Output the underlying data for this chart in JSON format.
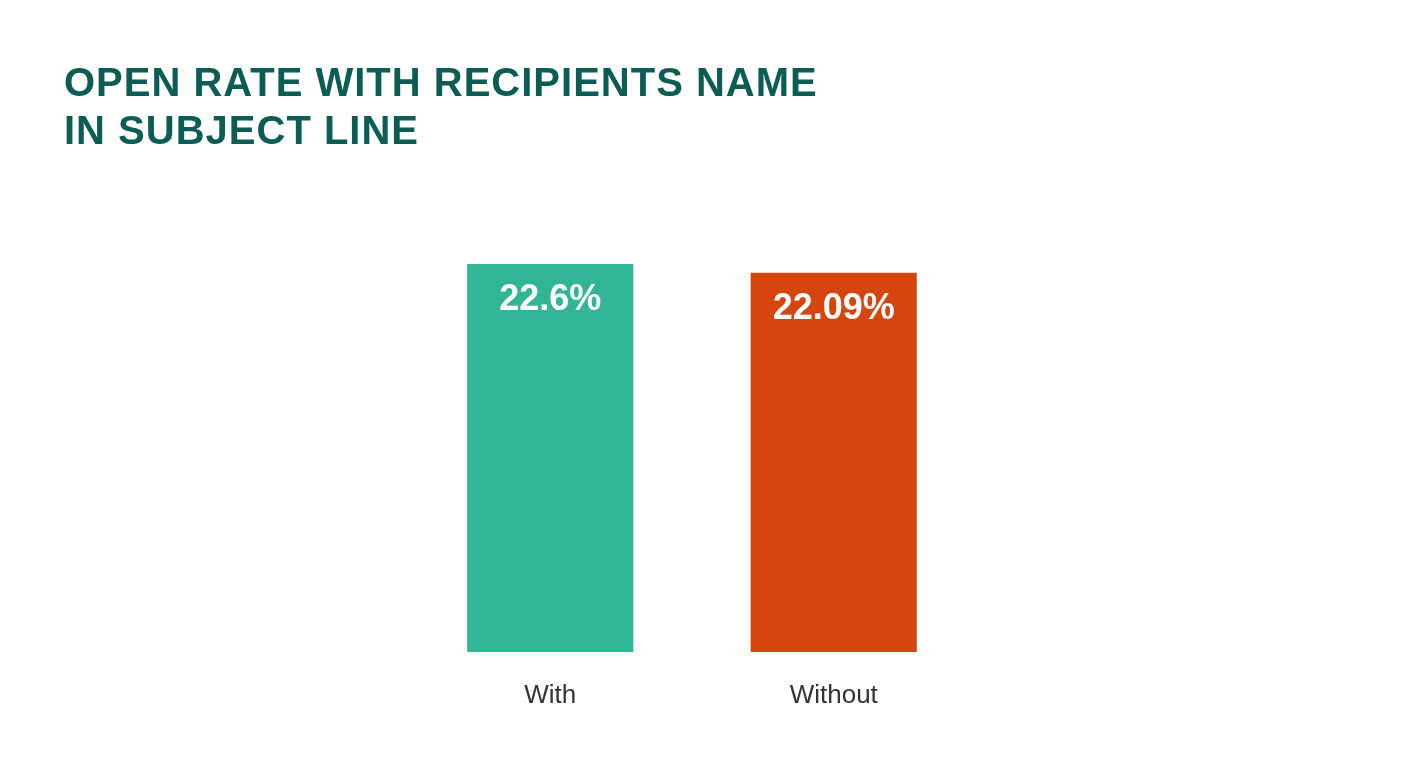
{
  "chart_data": {
    "type": "bar",
    "title": "OPEN RATE WITH RECIPIENTS NAME IN SUBJECT LINE",
    "categories": [
      "With",
      "Without"
    ],
    "values": [
      22.6,
      22.09
    ],
    "colors": [
      "#32b594",
      "#d5460e"
    ],
    "tick_labels": "x",
    "value_labels": [
      "22.6%",
      "22.09%"
    ]
  }
}
